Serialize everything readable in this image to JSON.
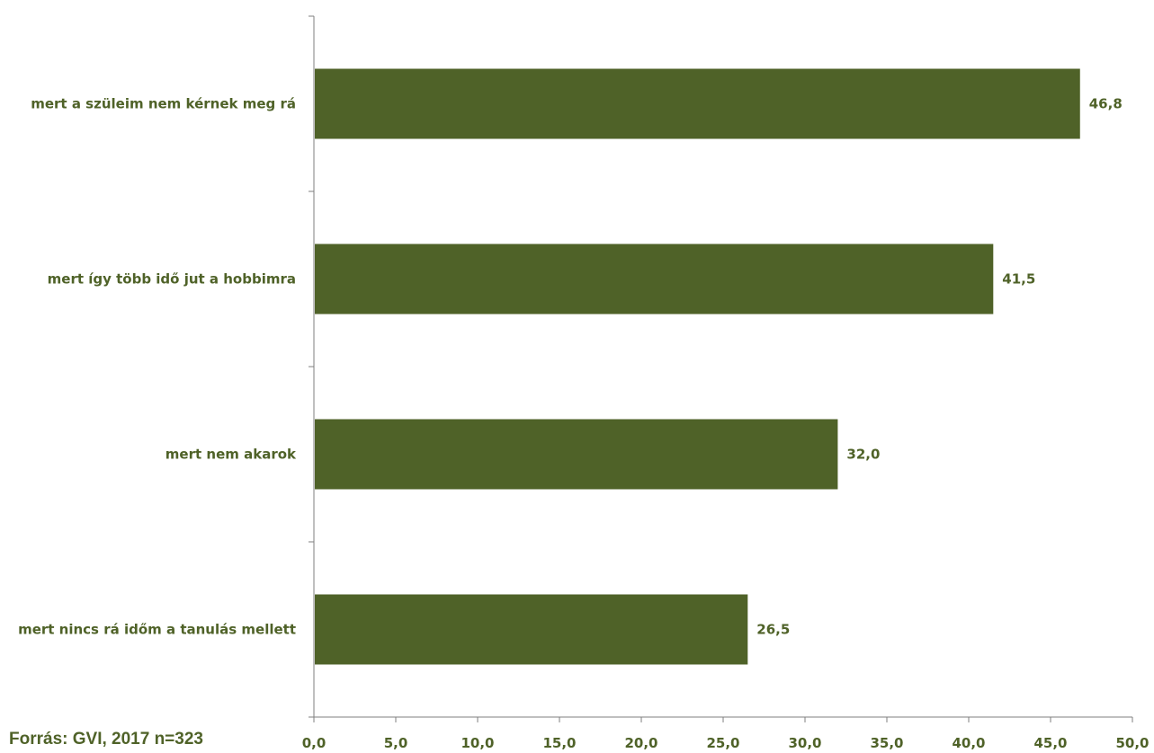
{
  "chart_data": {
    "type": "bar",
    "orientation": "horizontal",
    "categories": [
      "mert a szüleim nem kérnek meg rá",
      "mert így több idő jut a hobbimra",
      "mert nem akarok",
      "mert nincs rá időm a tanulás mellett"
    ],
    "values": [
      46.8,
      41.5,
      32.0,
      26.5
    ],
    "value_labels": [
      "46,8",
      "41,5",
      "32,0",
      "26,5"
    ],
    "xlim": [
      0,
      50
    ],
    "xticks": [
      "0,0",
      "5,0",
      "10,0",
      "15,0",
      "20,0",
      "25,0",
      "30,0",
      "35,0",
      "40,0",
      "45,0",
      "50,0"
    ],
    "bar_color": "#4f6228",
    "text_color": "#4f6228",
    "axis_color": "#7f7f7f",
    "grid": false,
    "legend": "none"
  },
  "source_note": "Forrás: GVI, 2017 n=323"
}
